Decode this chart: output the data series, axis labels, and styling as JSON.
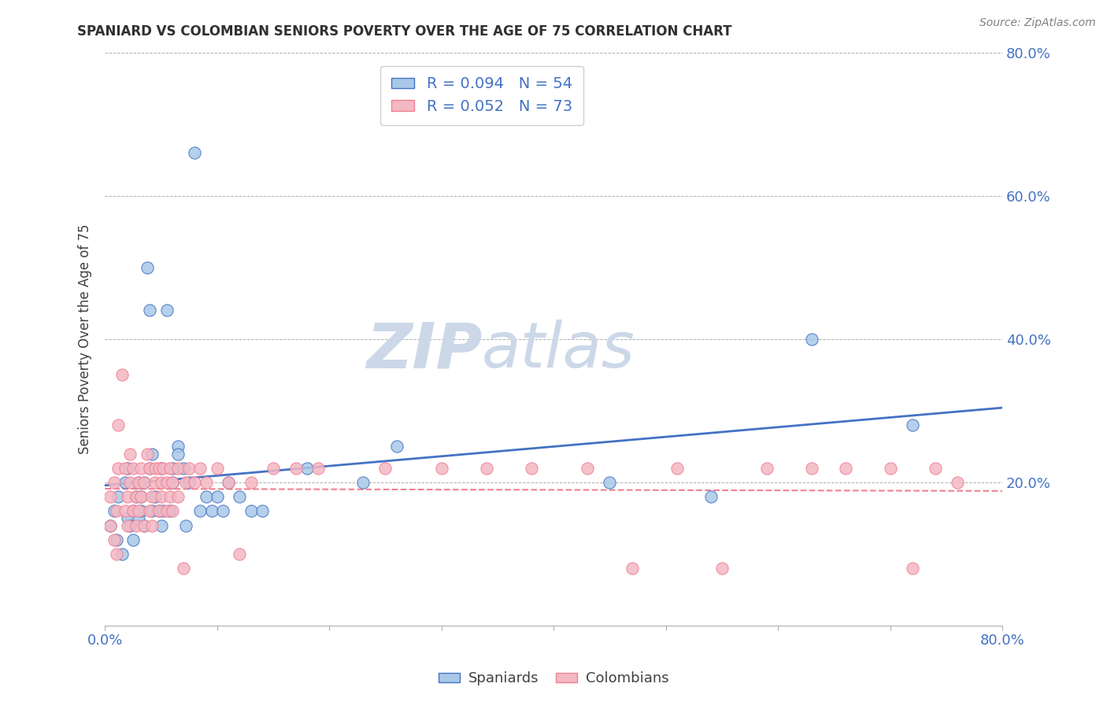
{
  "title": "SPANIARD VS COLOMBIAN SENIORS POVERTY OVER THE AGE OF 75 CORRELATION CHART",
  "source": "Source: ZipAtlas.com",
  "ylabel": "Seniors Poverty Over the Age of 75",
  "xlim": [
    0.0,
    0.8
  ],
  "ylim": [
    0.0,
    0.8
  ],
  "legend_r_spaniards": "R = 0.094",
  "legend_n_spaniards": "N = 54",
  "legend_r_colombians": "R = 0.052",
  "legend_n_colombians": "N = 73",
  "spaniards_color": "#a8c8e8",
  "colombians_color": "#f4b8c4",
  "spaniards_line_color": "#4472c4",
  "colombians_line_color": "#f08090",
  "watermark_color": "#ccd8e8",
  "grid_color": "#b0b0b0",
  "title_color": "#303030",
  "axis_label_color": "#404040",
  "tick_label_color": "#4472c4",
  "spaniards_x": [
    0.005,
    0.008,
    0.01,
    0.012,
    0.015,
    0.018,
    0.02,
    0.02,
    0.022,
    0.025,
    0.025,
    0.028,
    0.03,
    0.03,
    0.032,
    0.032,
    0.035,
    0.035,
    0.038,
    0.04,
    0.04,
    0.042,
    0.042,
    0.045,
    0.048,
    0.05,
    0.05,
    0.052,
    0.055,
    0.058,
    0.06,
    0.06,
    0.065,
    0.065,
    0.07,
    0.072,
    0.075,
    0.08,
    0.085,
    0.09,
    0.095,
    0.1,
    0.105,
    0.11,
    0.12,
    0.13,
    0.14,
    0.18,
    0.23,
    0.26,
    0.45,
    0.54,
    0.63,
    0.72
  ],
  "spaniards_y": [
    0.14,
    0.16,
    0.12,
    0.18,
    0.1,
    0.2,
    0.15,
    0.22,
    0.14,
    0.16,
    0.12,
    0.18,
    0.2,
    0.15,
    0.16,
    0.18,
    0.14,
    0.2,
    0.5,
    0.44,
    0.22,
    0.16,
    0.24,
    0.18,
    0.16,
    0.22,
    0.14,
    0.16,
    0.44,
    0.16,
    0.2,
    0.22,
    0.25,
    0.24,
    0.22,
    0.14,
    0.2,
    0.66,
    0.16,
    0.18,
    0.16,
    0.18,
    0.16,
    0.2,
    0.18,
    0.16,
    0.16,
    0.22,
    0.2,
    0.25,
    0.2,
    0.18,
    0.4,
    0.28
  ],
  "colombians_x": [
    0.005,
    0.005,
    0.008,
    0.008,
    0.01,
    0.01,
    0.012,
    0.012,
    0.015,
    0.018,
    0.018,
    0.02,
    0.02,
    0.022,
    0.022,
    0.025,
    0.025,
    0.028,
    0.028,
    0.03,
    0.03,
    0.032,
    0.032,
    0.035,
    0.035,
    0.038,
    0.04,
    0.04,
    0.042,
    0.042,
    0.045,
    0.045,
    0.048,
    0.048,
    0.05,
    0.05,
    0.052,
    0.055,
    0.055,
    0.058,
    0.058,
    0.06,
    0.06,
    0.065,
    0.065,
    0.07,
    0.072,
    0.075,
    0.08,
    0.085,
    0.09,
    0.1,
    0.11,
    0.12,
    0.13,
    0.15,
    0.17,
    0.19,
    0.25,
    0.3,
    0.34,
    0.38,
    0.43,
    0.47,
    0.51,
    0.55,
    0.59,
    0.63,
    0.66,
    0.7,
    0.72,
    0.74,
    0.76
  ],
  "colombians_y": [
    0.14,
    0.18,
    0.2,
    0.12,
    0.16,
    0.1,
    0.22,
    0.28,
    0.35,
    0.16,
    0.22,
    0.18,
    0.14,
    0.2,
    0.24,
    0.16,
    0.22,
    0.18,
    0.14,
    0.2,
    0.16,
    0.18,
    0.22,
    0.14,
    0.2,
    0.24,
    0.16,
    0.22,
    0.18,
    0.14,
    0.2,
    0.22,
    0.16,
    0.22,
    0.18,
    0.2,
    0.22,
    0.16,
    0.2,
    0.18,
    0.22,
    0.16,
    0.2,
    0.18,
    0.22,
    0.08,
    0.2,
    0.22,
    0.2,
    0.22,
    0.2,
    0.22,
    0.2,
    0.1,
    0.2,
    0.22,
    0.22,
    0.22,
    0.22,
    0.22,
    0.22,
    0.22,
    0.22,
    0.08,
    0.22,
    0.08,
    0.22,
    0.22,
    0.22,
    0.22,
    0.08,
    0.22,
    0.2
  ]
}
